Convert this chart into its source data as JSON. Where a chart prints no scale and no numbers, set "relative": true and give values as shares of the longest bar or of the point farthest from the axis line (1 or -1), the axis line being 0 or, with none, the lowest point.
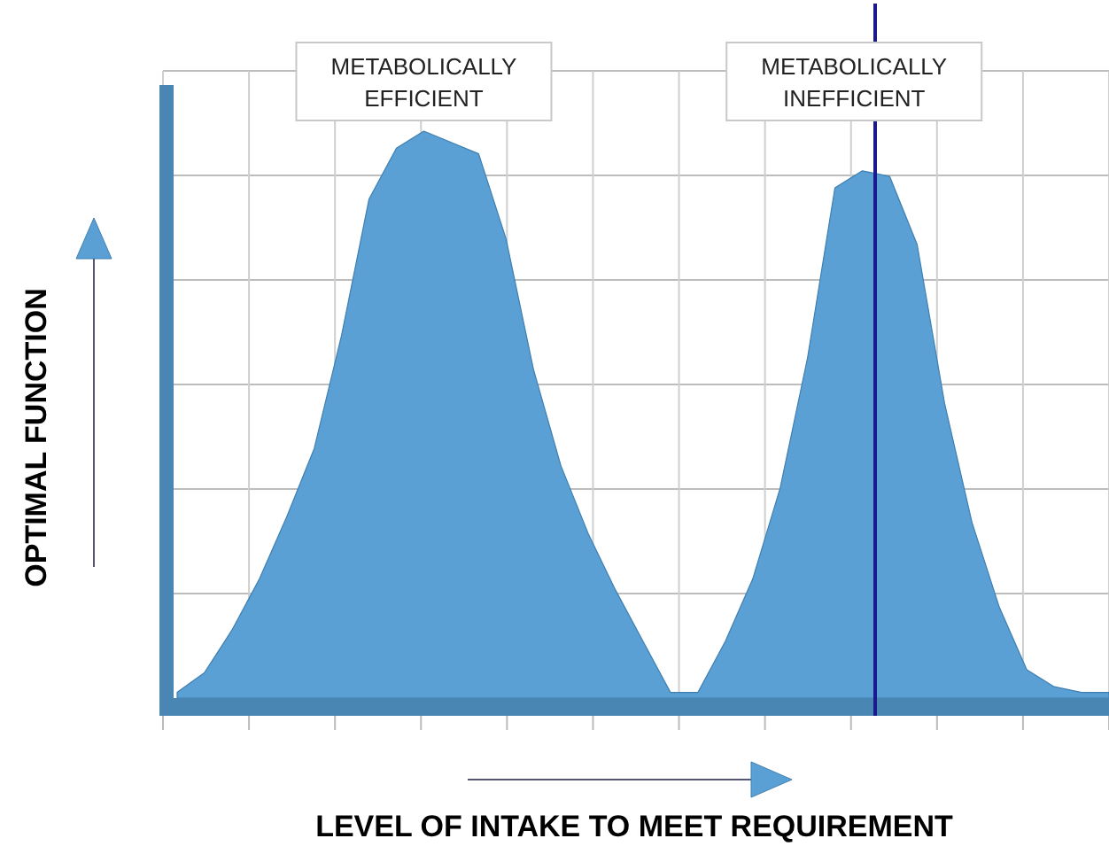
{
  "chart_data": {
    "type": "area",
    "relative": true,
    "xlabel": "LEVEL OF INTAKE TO MEET REQUIREMENT",
    "ylabel": "OPTIMAL FUNCTION",
    "categories": [
      null,
      null,
      null,
      null,
      null,
      null,
      null,
      null,
      null,
      null,
      null,
      null,
      null,
      null,
      null,
      null,
      null,
      null,
      null,
      null,
      null,
      null,
      null,
      null,
      null,
      null,
      null,
      null,
      null,
      null,
      null,
      null,
      null,
      null,
      null
    ],
    "series": [
      {
        "color": "#5aa0d4",
        "values": [
          0.01,
          0.045,
          0.12,
          0.21,
          0.32,
          0.44,
          0.64,
          0.88,
          0.97,
          1,
          0.98,
          0.96,
          0.81,
          0.58,
          0.41,
          0.29,
          0.19,
          0.1,
          0.01,
          0.01,
          0.1,
          0.21,
          0.37,
          0.6,
          0.9,
          0.93,
          0.92,
          0.8,
          0.52,
          0.31,
          0.16,
          0.05,
          0.02,
          0.01,
          0.01
        ]
      }
    ],
    "annotations": [
      "METABOLICALLY EFFICIENT",
      "METABOLICALLY INEFFICIENT"
    ],
    "grid": true
  }
}
